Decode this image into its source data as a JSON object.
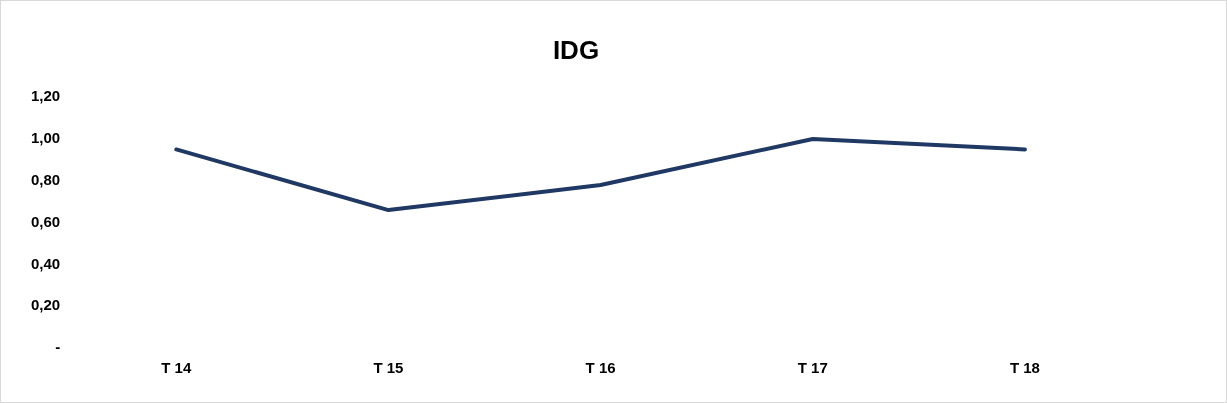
{
  "chart_data": {
    "type": "line",
    "title": "IDG",
    "categories": [
      "T 14",
      "T 15",
      "T 16",
      "T 17",
      "T 18"
    ],
    "series": [
      {
        "color": "#203864",
        "values": [
          0.95,
          0.66,
          0.78,
          1.0,
          0.95
        ]
      }
    ],
    "ylim": [
      0,
      1.2
    ],
    "yticks": [
      {
        "value": 0,
        "label": "-"
      },
      {
        "value": 0.2,
        "label": "0,20"
      },
      {
        "value": 0.4,
        "label": "0,40"
      },
      {
        "value": 0.6,
        "label": "0,60"
      },
      {
        "value": 0.8,
        "label": "0,80"
      },
      {
        "value": 1.0,
        "label": "1,00"
      },
      {
        "value": 1.2,
        "label": "1,20"
      }
    ],
    "grid": false,
    "legend": false,
    "marker": "none",
    "line_style": "solid"
  }
}
